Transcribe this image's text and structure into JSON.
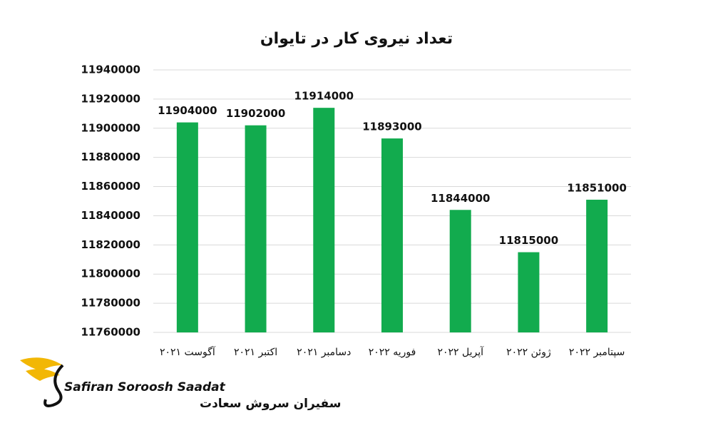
{
  "chart_data": {
    "type": "bar",
    "title": "تعداد نیروی کار در تایوان",
    "categories": [
      "آگوست ۲۰۲۱",
      "اکتبر ۲۰۲۱",
      "دسامبر ۲۰۲۱",
      "فوریه ۲۰۲۲",
      "آپریل ۲۰۲۲",
      "ژوئن ۲۰۲۲",
      "سپتامبر ۲۰۲۲"
    ],
    "values": [
      11904000,
      11902000,
      11914000,
      11893000,
      11844000,
      11815000,
      11851000
    ],
    "color": "#12ab4e",
    "ylim": [
      11760000,
      11940000
    ],
    "yticks": [
      11760000,
      11780000,
      11800000,
      11820000,
      11840000,
      11860000,
      11880000,
      11900000,
      11920000,
      11940000
    ],
    "grid": true
  },
  "logo": {
    "name_en": "Safiran Soroosh Saadat",
    "name_fa": "سفیران سروش سعادت"
  }
}
